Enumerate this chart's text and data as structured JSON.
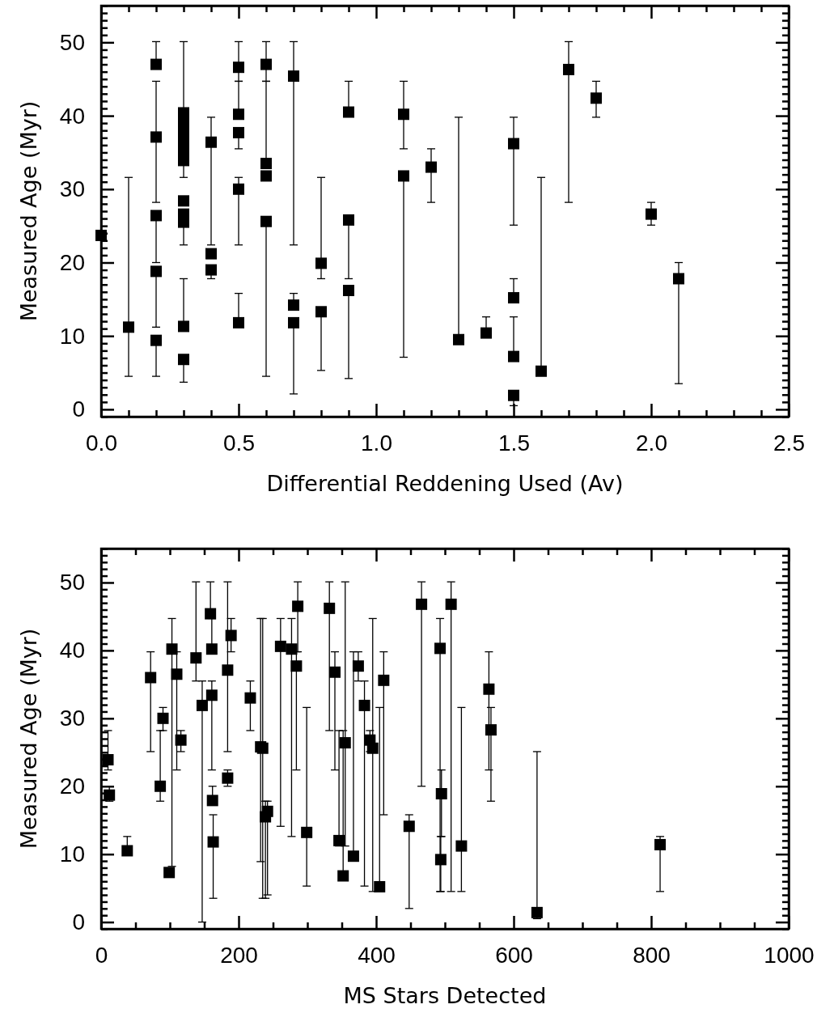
{
  "chart_data": [
    {
      "type": "scatter",
      "xlabel": "Differential Reddening Used (Av)",
      "ylabel": "Measured Age (Myr)",
      "marker": "square",
      "xlim": [
        0,
        2.5
      ],
      "ylim": [
        -1,
        55
      ],
      "xticks": [
        {
          "value": 0,
          "label": "0.0"
        },
        {
          "value": 0.1,
          "label": null
        },
        {
          "value": 0.2,
          "label": null
        },
        {
          "value": 0.3,
          "label": null
        },
        {
          "value": 0.4,
          "label": null
        },
        {
          "value": 0.5,
          "label": "0.5"
        },
        {
          "value": 0.6,
          "label": null
        },
        {
          "value": 0.7,
          "label": null
        },
        {
          "value": 0.8,
          "label": null
        },
        {
          "value": 0.9,
          "label": null
        },
        {
          "value": 1,
          "label": "1.0"
        },
        {
          "value": 1.1,
          "label": null
        },
        {
          "value": 1.2,
          "label": null
        },
        {
          "value": 1.3,
          "label": null
        },
        {
          "value": 1.4,
          "label": null
        },
        {
          "value": 1.5,
          "label": "1.5"
        },
        {
          "value": 1.6,
          "label": null
        },
        {
          "value": 1.7,
          "label": null
        },
        {
          "value": 1.8,
          "label": null
        },
        {
          "value": 1.9,
          "label": null
        },
        {
          "value": 2,
          "label": "2.0"
        },
        {
          "value": 2.1,
          "label": null
        },
        {
          "value": 2.2,
          "label": null
        },
        {
          "value": 2.3,
          "label": null
        },
        {
          "value": 2.4,
          "label": null
        },
        {
          "value": 2.5,
          "label": "2.5"
        }
      ],
      "yticks": [
        {
          "value": -1,
          "label": null
        },
        0,
        {
          "value": 1,
          "label": null
        },
        {
          "value": 2,
          "label": null
        },
        {
          "value": 3,
          "label": null
        },
        {
          "value": 4,
          "label": null
        },
        {
          "value": 5,
          "label": null
        },
        {
          "value": 6,
          "label": null
        },
        {
          "value": 7,
          "label": null
        },
        {
          "value": 8,
          "label": null
        },
        {
          "value": 9,
          "label": null
        },
        10,
        {
          "value": 11,
          "label": null
        },
        {
          "value": 12,
          "label": null
        },
        {
          "value": 13,
          "label": null
        },
        {
          "value": 14,
          "label": null
        },
        {
          "value": 15,
          "label": null
        },
        {
          "value": 16,
          "label": null
        },
        {
          "value": 17,
          "label": null
        },
        {
          "value": 18,
          "label": null
        },
        {
          "value": 19,
          "label": null
        },
        20,
        {
          "value": 21,
          "label": null
        },
        {
          "value": 22,
          "label": null
        },
        {
          "value": 23,
          "label": null
        },
        {
          "value": 24,
          "label": null
        },
        {
          "value": 25,
          "label": null
        },
        {
          "value": 26,
          "label": null
        },
        {
          "value": 27,
          "label": null
        },
        {
          "value": 28,
          "label": null
        },
        {
          "value": 29,
          "label": null
        },
        30,
        {
          "value": 31,
          "label": null
        },
        {
          "value": 32,
          "label": null
        },
        {
          "value": 33,
          "label": null
        },
        {
          "value": 34,
          "label": null
        },
        {
          "value": 35,
          "label": null
        },
        {
          "value": 36,
          "label": null
        },
        {
          "value": 37,
          "label": null
        },
        {
          "value": 38,
          "label": null
        },
        {
          "value": 39,
          "label": null
        },
        40,
        {
          "value": 41,
          "label": null
        },
        {
          "value": 42,
          "label": null
        },
        {
          "value": 43,
          "label": null
        },
        {
          "value": 44,
          "label": null
        },
        {
          "value": 45,
          "label": null
        },
        {
          "value": 46,
          "label": null
        },
        {
          "value": 47,
          "label": null
        },
        {
          "value": 48,
          "label": null
        },
        {
          "value": 49,
          "label": null
        },
        50,
        {
          "value": 51,
          "label": null
        },
        {
          "value": 52,
          "label": null
        },
        {
          "value": 53,
          "label": null
        },
        {
          "value": 54,
          "label": null
        },
        {
          "value": 55,
          "label": null
        }
      ],
      "series": [
        {
          "color": "#000000",
          "x": [
            0,
            0.1,
            0.2,
            0.2,
            0.2,
            0.2,
            0.2,
            0.3,
            0.3,
            0.3,
            0.3,
            0.3,
            0.3,
            0.3,
            0.3,
            0.3,
            0.3,
            0.3,
            0.3,
            0.4,
            0.4,
            0.4,
            0.5,
            0.5,
            0.5,
            0.5,
            0.5,
            0.6,
            0.6,
            0.6,
            0.6,
            0.7,
            0.7,
            0.7,
            0.8,
            0.8,
            0.9,
            0.9,
            0.9,
            1.1,
            1.1,
            1.2,
            1.3,
            1.4,
            1.5,
            1.5,
            1.5,
            1.5,
            1.6,
            1.7,
            1.8,
            2,
            2.1
          ],
          "values": [
            23.7,
            11.2,
            47,
            37.1,
            26.4,
            18.8,
            9.4,
            40.4,
            39.3,
            38.2,
            37.1,
            36,
            34.9,
            33.9,
            28.4,
            26.6,
            25.5,
            11.3,
            6.8,
            36.4,
            21.2,
            19,
            46.6,
            40.2,
            37.7,
            30,
            11.8,
            47,
            33.5,
            31.8,
            25.6,
            45.4,
            14.2,
            11.8,
            19.9,
            13.3,
            40.5,
            25.8,
            16.2,
            40.2,
            31.8,
            33,
            9.5,
            10.4,
            36.2,
            15.2,
            7.2,
            1.9,
            5.2,
            46.3,
            42.4,
            26.6,
            17.8
          ],
          "errors": [
            null,
            [
              4.5,
              31.6
            ],
            [
              47,
              50.1
            ],
            [
              28.2,
              44.7
            ],
            [
              20,
              26.4
            ],
            [
              11.2,
              18.8
            ],
            [
              4.5,
              9.4
            ],
            [
              40.4,
              50.1
            ],
            null,
            null,
            null,
            null,
            null,
            [
              31.6,
              33.9
            ],
            null,
            null,
            [
              22.4,
              25.5
            ],
            [
              11.3,
              17.8
            ],
            [
              3.7,
              6.8
            ],
            [
              22.4,
              39.8
            ],
            null,
            [
              17.8,
              19
            ],
            [
              44.7,
              50.1
            ],
            [
              40.2,
              44.7
            ],
            [
              35.5,
              37.7
            ],
            [
              22.4,
              31.6
            ],
            [
              11.8,
              15.8
            ],
            [
              44.7,
              50.1
            ],
            [
              33.5,
              44.7
            ],
            null,
            [
              4.5,
              25.6
            ],
            [
              22.4,
              50.1
            ],
            [
              14.2,
              15.8
            ],
            [
              2.1,
              11.8
            ],
            [
              17.8,
              31.6
            ],
            [
              5.3,
              13.3
            ],
            [
              40.5,
              44.7
            ],
            [
              17.8,
              25.8
            ],
            [
              4.2,
              16.2
            ],
            [
              35.5,
              44.7
            ],
            [
              7.1,
              31.8
            ],
            [
              28.2,
              35.5
            ],
            [
              9.5,
              39.8
            ],
            [
              10.4,
              12.6
            ],
            [
              25.1,
              39.8
            ],
            [
              15.2,
              17.8
            ],
            [
              7.2,
              12.6
            ],
            [
              0.5,
              1.9
            ],
            [
              5.2,
              31.6
            ],
            [
              28.2,
              50.1
            ],
            [
              39.8,
              44.7
            ],
            [
              25.1,
              28.2
            ],
            [
              3.5,
              20
            ]
          ]
        }
      ]
    },
    {
      "type": "scatter",
      "xlabel": "MS Stars Detected",
      "ylabel": "Measured Age (Myr)",
      "marker": "square",
      "xlim": [
        0,
        1000
      ],
      "ylim": [
        -1,
        55
      ],
      "xticks": [
        {
          "value": 0,
          "label": "0"
        },
        {
          "value": 50,
          "label": null
        },
        {
          "value": 100,
          "label": null
        },
        {
          "value": 150,
          "label": null
        },
        {
          "value": 200,
          "label": "200"
        },
        {
          "value": 250,
          "label": null
        },
        {
          "value": 300,
          "label": null
        },
        {
          "value": 350,
          "label": null
        },
        {
          "value": 400,
          "label": "400"
        },
        {
          "value": 450,
          "label": null
        },
        {
          "value": 500,
          "label": null
        },
        {
          "value": 550,
          "label": null
        },
        {
          "value": 600,
          "label": "600"
        },
        {
          "value": 650,
          "label": null
        },
        {
          "value": 700,
          "label": null
        },
        {
          "value": 750,
          "label": null
        },
        {
          "value": 800,
          "label": "800"
        },
        {
          "value": 850,
          "label": null
        },
        {
          "value": 900,
          "label": null
        },
        {
          "value": 950,
          "label": null
        },
        {
          "value": 1000,
          "label": "1000"
        }
      ],
      "yticks": [
        {
          "value": -1,
          "label": null
        },
        0,
        {
          "value": 1,
          "label": null
        },
        {
          "value": 2,
          "label": null
        },
        {
          "value": 3,
          "label": null
        },
        {
          "value": 4,
          "label": null
        },
        {
          "value": 5,
          "label": null
        },
        {
          "value": 6,
          "label": null
        },
        {
          "value": 7,
          "label": null
        },
        {
          "value": 8,
          "label": null
        },
        {
          "value": 9,
          "label": null
        },
        10,
        {
          "value": 11,
          "label": null
        },
        {
          "value": 12,
          "label": null
        },
        {
          "value": 13,
          "label": null
        },
        {
          "value": 14,
          "label": null
        },
        {
          "value": 15,
          "label": null
        },
        {
          "value": 16,
          "label": null
        },
        {
          "value": 17,
          "label": null
        },
        {
          "value": 18,
          "label": null
        },
        {
          "value": 19,
          "label": null
        },
        20,
        {
          "value": 21,
          "label": null
        },
        {
          "value": 22,
          "label": null
        },
        {
          "value": 23,
          "label": null
        },
        {
          "value": 24,
          "label": null
        },
        {
          "value": 25,
          "label": null
        },
        {
          "value": 26,
          "label": null
        },
        {
          "value": 27,
          "label": null
        },
        {
          "value": 28,
          "label": null
        },
        {
          "value": 29,
          "label": null
        },
        30,
        {
          "value": 31,
          "label": null
        },
        {
          "value": 32,
          "label": null
        },
        {
          "value": 33,
          "label": null
        },
        {
          "value": 34,
          "label": null
        },
        {
          "value": 35,
          "label": null
        },
        {
          "value": 36,
          "label": null
        },
        {
          "value": 37,
          "label": null
        },
        {
          "value": 38,
          "label": null
        },
        {
          "value": 39,
          "label": null
        },
        40,
        {
          "value": 41,
          "label": null
        },
        {
          "value": 42,
          "label": null
        },
        {
          "value": 43,
          "label": null
        },
        {
          "value": 44,
          "label": null
        },
        {
          "value": 45,
          "label": null
        },
        {
          "value": 46,
          "label": null
        },
        {
          "value": 47,
          "label": null
        },
        {
          "value": 48,
          "label": null
        },
        {
          "value": 49,
          "label": null
        },
        50,
        {
          "value": 51,
          "label": null
        },
        {
          "value": 52,
          "label": null
        },
        {
          "value": 53,
          "label": null
        },
        {
          "value": 54,
          "label": null
        },
        {
          "value": 55,
          "label": null
        }
      ],
      "series": [
        {
          "color": "#000000",
          "x": [
            10,
            12,
            38,
            72,
            86,
            90,
            99,
            103,
            110,
            116,
            138,
            147,
            159,
            161,
            161,
            162,
            163,
            184,
            189,
            184,
            217,
            232,
            235,
            239,
            242,
            261,
            277,
            286,
            284,
            299,
            332,
            340,
            355,
            346,
            352,
            367,
            374,
            383,
            391,
            395,
            405,
            411,
            448,
            466,
            493,
            495,
            494,
            509,
            524,
            564,
            567,
            634,
            813
          ],
          "values": [
            23.9,
            18.7,
            10.5,
            36,
            20,
            30,
            7.3,
            40.2,
            36.5,
            26.8,
            38.9,
            31.9,
            45.4,
            40.2,
            33.4,
            17.9,
            11.8,
            37.1,
            42.2,
            21.2,
            33,
            25.8,
            25.6,
            15.5,
            16.3,
            40.6,
            40.2,
            46.5,
            37.7,
            13.2,
            46.2,
            36.8,
            26.4,
            12,
            6.8,
            9.7,
            37.7,
            31.9,
            26.8,
            25.6,
            5.2,
            35.6,
            14.1,
            46.8,
            40.3,
            18.9,
            9.2,
            46.8,
            11.2,
            34.3,
            28.3,
            1.4,
            11.4
          ],
          "errors": [
            [
              22.4,
              28.2
            ],
            [
              17.8,
              20
            ],
            [
              10.5,
              12.6
            ],
            [
              25.1,
              39.8
            ],
            [
              17.8,
              28.2
            ],
            [
              28.2,
              31.6
            ],
            null,
            [
              8.2,
              44.7
            ],
            [
              22.4,
              39.8
            ],
            [
              25.1,
              28.2
            ],
            [
              35.5,
              50.1
            ],
            [
              0,
              35.5
            ],
            [
              45.4,
              50.1
            ],
            [
              40.2,
              44.7
            ],
            [
              22.4,
              35.5
            ],
            [
              17.9,
              20
            ],
            [
              3.5,
              15.8
            ],
            [
              25.1,
              50.1
            ],
            [
              39.8,
              44.7
            ],
            [
              20,
              22.4
            ],
            [
              28.2,
              35.5
            ],
            [
              8.9,
              44.7
            ],
            [
              3.5,
              44.7
            ],
            [
              3.5,
              17.8
            ],
            [
              4,
              17.8
            ],
            [
              14.1,
              44.7
            ],
            [
              12.6,
              44.7
            ],
            [
              39.8,
              50.1
            ],
            [
              22.4,
              39.8
            ],
            [
              5.3,
              31.6
            ],
            [
              28.2,
              50.1
            ],
            [
              22.4,
              39.8
            ],
            [
              11.2,
              50.1
            ],
            [
              11.2,
              28.2
            ],
            [
              6.8,
              28.2
            ],
            [
              9.7,
              39.8
            ],
            [
              35.5,
              39.8
            ],
            [
              5.3,
              35.5
            ],
            [
              25.1,
              28.2
            ],
            [
              4.5,
              44.7
            ],
            [
              5.2,
              31.6
            ],
            [
              15.8,
              39.8
            ],
            [
              2,
              15.8
            ],
            [
              20,
              50.1
            ],
            [
              4.5,
              44.7
            ],
            [
              12.6,
              22.4
            ],
            [
              4.5,
              12.6
            ],
            [
              4.5,
              50.1
            ],
            [
              4.5,
              31.6
            ],
            [
              22.4,
              39.8
            ],
            [
              17.8,
              31.6
            ],
            [
              0.5,
              25.1
            ],
            [
              4.5,
              12.6
            ]
          ]
        }
      ]
    }
  ]
}
